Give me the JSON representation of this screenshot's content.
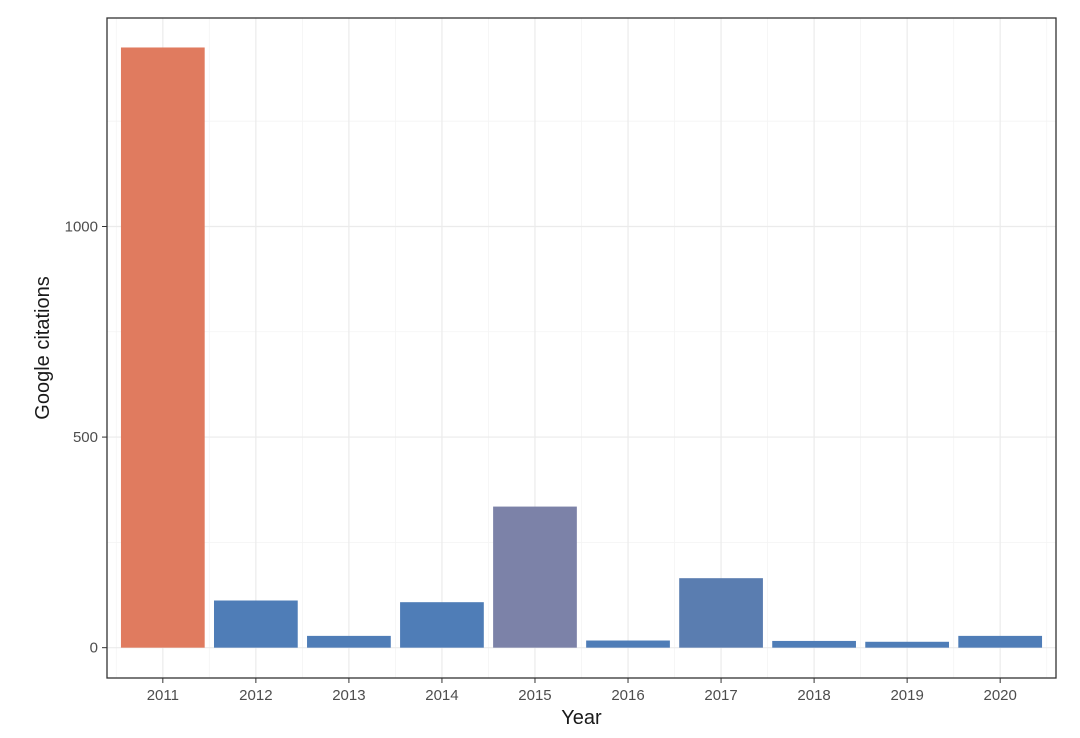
{
  "chart_data": {
    "type": "bar",
    "title": "",
    "xlabel": "Year",
    "ylabel": "Google citations",
    "categories": [
      "2011",
      "2012",
      "2013",
      "2014",
      "2015",
      "2016",
      "2017",
      "2018",
      "2019",
      "2020"
    ],
    "values": [
      1425,
      112,
      28,
      108,
      335,
      17,
      165,
      16,
      14,
      28
    ],
    "bar_colors": [
      "#E07B5F",
      "#4F7DB7",
      "#4F7DB7",
      "#4F7DB7",
      "#7C82A8",
      "#4F7DB7",
      "#5A7DB0",
      "#4F7DB7",
      "#4F7DB7",
      "#4F7DB7"
    ],
    "ylim": [
      -72,
      1495
    ],
    "yticks": [
      0,
      500,
      1000
    ],
    "grid": true,
    "legend": "none"
  }
}
